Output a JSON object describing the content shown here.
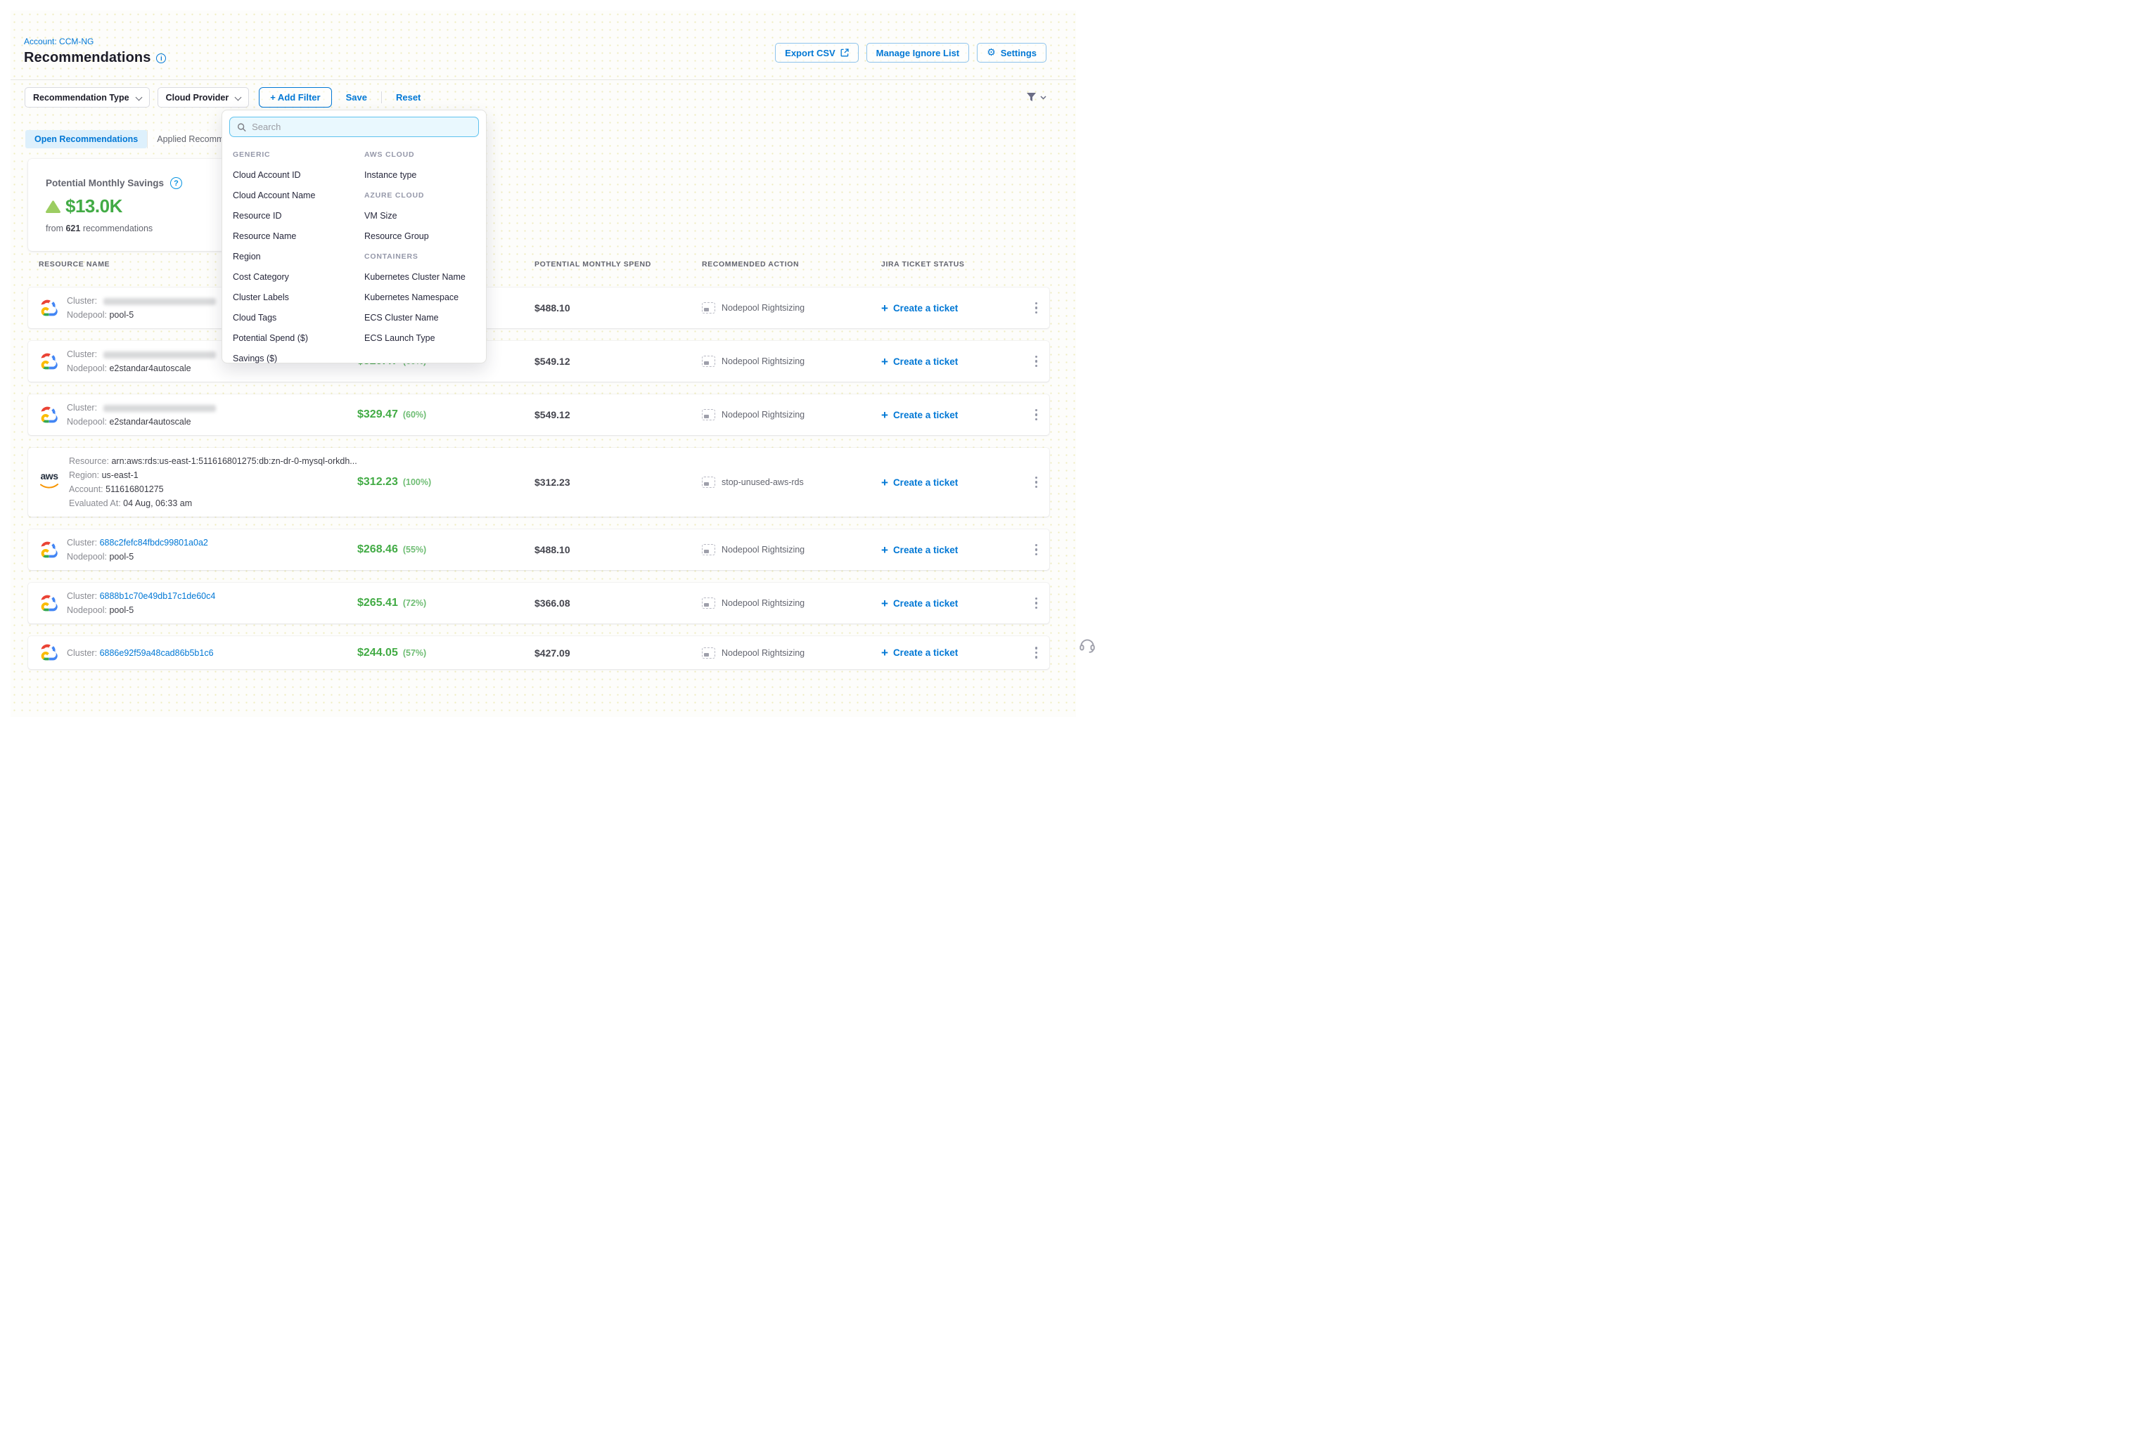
{
  "header": {
    "account_label": "Account: CCM-NG",
    "title": "Recommendations",
    "buttons": {
      "export_csv": "Export CSV",
      "manage_ignore_list": "Manage Ignore List",
      "settings": "Settings"
    }
  },
  "filter_bar": {
    "chips": [
      "Recommendation Type",
      "Cloud Provider"
    ],
    "add_filter": "+ Add Filter",
    "save": "Save",
    "reset": "Reset"
  },
  "tabs": [
    {
      "label": "Open Recommendations",
      "active": true
    },
    {
      "label": "Applied Recommendations",
      "active": false
    }
  ],
  "savings_card": {
    "title": "Potential Monthly Savings",
    "amount": "$13.0K",
    "sub_prefix": "from ",
    "sub_count": "621",
    "sub_suffix": " recommendations"
  },
  "filter_dropdown": {
    "search_placeholder": "Search",
    "col1": [
      {
        "type": "header",
        "label": "GENERIC"
      },
      {
        "type": "item",
        "label": "Cloud Account ID"
      },
      {
        "type": "item",
        "label": "Cloud Account Name"
      },
      {
        "type": "item",
        "label": "Resource ID"
      },
      {
        "type": "item",
        "label": "Resource Name"
      },
      {
        "type": "item",
        "label": "Region"
      },
      {
        "type": "item",
        "label": "Cost Category"
      },
      {
        "type": "item",
        "label": "Cluster Labels"
      },
      {
        "type": "item",
        "label": "Cloud Tags"
      },
      {
        "type": "item",
        "label": "Potential Spend ($)"
      },
      {
        "type": "item",
        "label": "Savings ($)"
      }
    ],
    "col2": [
      {
        "type": "header",
        "label": "AWS CLOUD"
      },
      {
        "type": "item",
        "label": "Instance type"
      },
      {
        "type": "header",
        "label": "AZURE CLOUD"
      },
      {
        "type": "item",
        "label": "VM Size"
      },
      {
        "type": "item",
        "label": "Resource Group"
      },
      {
        "type": "header",
        "label": "CONTAINERS"
      },
      {
        "type": "item",
        "label": "Kubernetes Cluster Name"
      },
      {
        "type": "item",
        "label": "Kubernetes Namespace"
      },
      {
        "type": "item",
        "label": "ECS Cluster Name"
      },
      {
        "type": "item",
        "label": "ECS Launch Type"
      }
    ]
  },
  "table": {
    "headers": [
      "RESOURCE NAME",
      "",
      "POTENTIAL MONTHLY SPEND",
      "RECOMMENDED ACTION",
      "JIRA TICKET STATUS",
      ""
    ],
    "labels": {
      "cluster": "Cluster:",
      "nodepool": "Nodepool:"
    },
    "jira_action": "Create a ticket",
    "rows": [
      {
        "provider": "gcp",
        "cluster": null,
        "redacted": true,
        "nodepool": "pool-5",
        "savings": null,
        "spend": "$488.10",
        "action": "Nodepool Rightsizing"
      },
      {
        "provider": "gcp",
        "cluster": null,
        "redacted": true,
        "nodepool": "e2standar4autoscale",
        "savings": {
          "amount": "$329.47",
          "pct": "(60%)"
        },
        "spend": "$549.12",
        "action": "Nodepool Rightsizing"
      },
      {
        "provider": "gcp",
        "cluster": null,
        "redacted": true,
        "nodepool": "e2standar4autoscale",
        "savings": {
          "amount": "$329.47",
          "pct": "(60%)"
        },
        "spend": "$549.12",
        "action": "Nodepool Rightsizing"
      },
      {
        "provider": "aws",
        "lines": [
          {
            "label": "Resource:",
            "value": "arn:aws:rds:us-east-1:511616801275:db:zn-dr-0-mysql-orkdh..."
          },
          {
            "label": "Region:",
            "value": "us-east-1"
          },
          {
            "label": "Account:",
            "value": "511616801275"
          },
          {
            "label": "Evaluated At:",
            "value": "04 Aug, 06:33 am"
          }
        ],
        "savings": {
          "amount": "$312.23",
          "pct": "(100%)"
        },
        "spend": "$312.23",
        "action": "stop-unused-aws-rds"
      },
      {
        "provider": "gcp",
        "cluster": "688c2fefc84fbdc99801a0a2",
        "redacted": false,
        "nodepool": "pool-5",
        "savings": {
          "amount": "$268.46",
          "pct": "(55%)"
        },
        "spend": "$488.10",
        "action": "Nodepool Rightsizing"
      },
      {
        "provider": "gcp",
        "cluster": "6888b1c70e49db17c1de60c4",
        "redacted": false,
        "nodepool": "pool-5",
        "savings": {
          "amount": "$265.41",
          "pct": "(72%)"
        },
        "spend": "$366.08",
        "action": "Nodepool Rightsizing"
      },
      {
        "provider": "gcp",
        "cluster": "6886e92f59a48cad86b5b1c6",
        "redacted": false,
        "nodepool": null,
        "savings": {
          "amount": "$244.05",
          "pct": "(57%)"
        },
        "spend": "$427.09",
        "action": "Nodepool Rightsizing"
      }
    ]
  },
  "colors": {
    "primary_blue": "#0278d5",
    "savings_green": "#42ab45",
    "muted_gray": "#63656f"
  }
}
